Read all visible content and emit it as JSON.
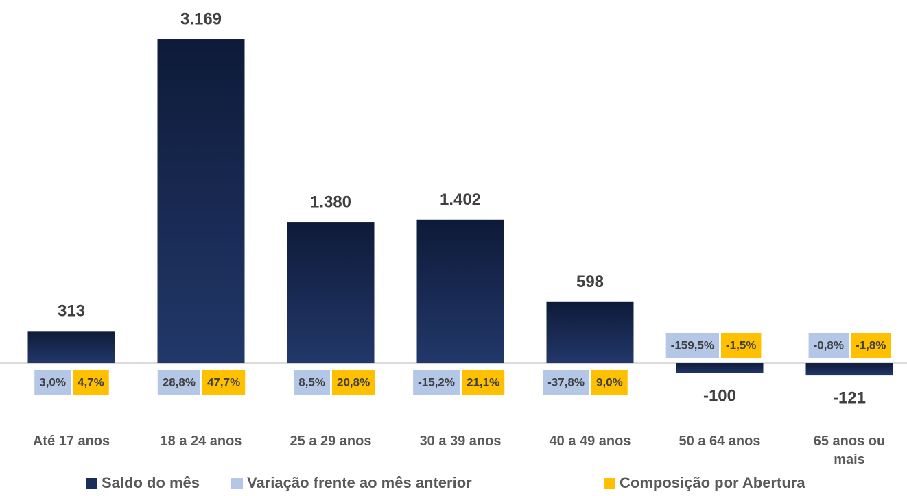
{
  "chart_data": {
    "type": "bar",
    "categories": [
      "Até 17 anos",
      "18 a 24 anos",
      "25 a 29 anos",
      "30 a 39 anos",
      "40 a 49 anos",
      "50 a 64 anos",
      "65 anos ou mais"
    ],
    "series": [
      {
        "name": "Saldo do mês",
        "color": "#1b2d5c",
        "values": [
          313,
          3169,
          1380,
          1402,
          598,
          -100,
          -121
        ],
        "value_labels": [
          "313",
          "3.169",
          "1.380",
          "1.402",
          "598",
          "-100",
          "-121"
        ]
      },
      {
        "name": "Variação frente ao mês anterior",
        "color": "#b4c7e7",
        "values": [
          3.0,
          28.8,
          8.5,
          -15.2,
          -37.8,
          -159.5,
          -0.8
        ],
        "value_labels": [
          "3,0%",
          "28,8%",
          "8,5%",
          "-15,2%",
          "-37,8%",
          "-159,5%",
          "-0,8%"
        ]
      },
      {
        "name": "Composição por Abertura",
        "color": "#ffc000",
        "values": [
          4.7,
          47.7,
          20.8,
          21.1,
          9.0,
          -1.5,
          -1.8
        ],
        "value_labels": [
          "4,7%",
          "47,7%",
          "20,8%",
          "21,1%",
          "9,0%",
          "-1,5%",
          "-1,8%"
        ]
      }
    ],
    "ylim": [
      -200,
      3200
    ]
  }
}
